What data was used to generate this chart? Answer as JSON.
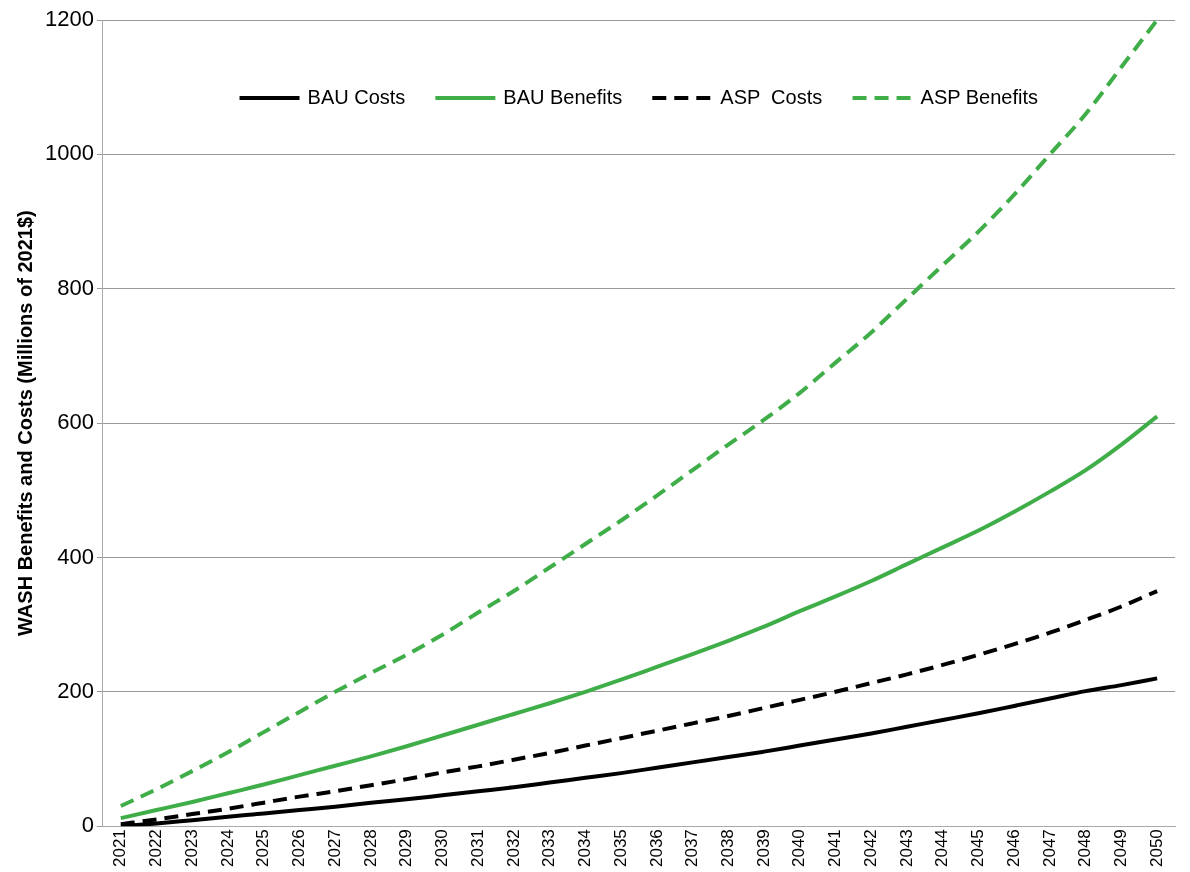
{
  "chart_data": {
    "type": "line",
    "ylabel": "WASH Benefits and Costs (Millions of 2021$)",
    "categories": [
      "2021",
      "2022",
      "2023",
      "2024",
      "2025",
      "2026",
      "2027",
      "2028",
      "2029",
      "2030",
      "2031",
      "2032",
      "2033",
      "2034",
      "2035",
      "2036",
      "2037",
      "2038",
      "2039",
      "2040",
      "2041",
      "2042",
      "2043",
      "2044",
      "2045",
      "2046",
      "2047",
      "2048",
      "2049",
      "2050"
    ],
    "series": [
      {
        "name": "BAU Costs",
        "color": "#000000",
        "line_style": "solid",
        "values": [
          0,
          4,
          9,
          14,
          19,
          24,
          29,
          35,
          40,
          46,
          52,
          58,
          65,
          72,
          79,
          87,
          95,
          103,
          111,
          120,
          129,
          138,
          148,
          158,
          168,
          179,
          190,
          201,
          210,
          220
        ]
      },
      {
        "name": "BAU Benefits",
        "color": "#3fae49",
        "line_style": "solid",
        "values": [
          12,
          24,
          36,
          49,
          62,
          76,
          90,
          104,
          119,
          135,
          151,
          167,
          183,
          200,
          218,
          237,
          256,
          276,
          297,
          320,
          342,
          365,
          390,
          415,
          440,
          468,
          498,
          530,
          568,
          610
        ]
      },
      {
        "name": "ASP  Costs",
        "color": "#000000",
        "line_style": "dashed",
        "values": [
          3,
          10,
          18,
          26,
          35,
          44,
          52,
          61,
          70,
          80,
          89,
          99,
          109,
          120,
          131,
          142,
          153,
          164,
          176,
          188,
          200,
          213,
          226,
          240,
          255,
          271,
          288,
          307,
          327,
          350
        ]
      },
      {
        "name": "ASP Benefits",
        "color": "#3fae49",
        "line_style": "dashed",
        "values": [
          30,
          55,
          82,
          110,
          140,
          170,
          200,
          228,
          255,
          285,
          318,
          350,
          385,
          420,
          455,
          492,
          530,
          568,
          605,
          645,
          690,
          735,
          785,
          835,
          885,
          940,
          1000,
          1060,
          1130,
          1200
        ]
      }
    ],
    "ylim": [
      0,
      1200
    ],
    "yticks": [
      0,
      200,
      400,
      600,
      800,
      1000,
      1200
    ],
    "grid": "y",
    "legend": "top",
    "marker": "none"
  }
}
